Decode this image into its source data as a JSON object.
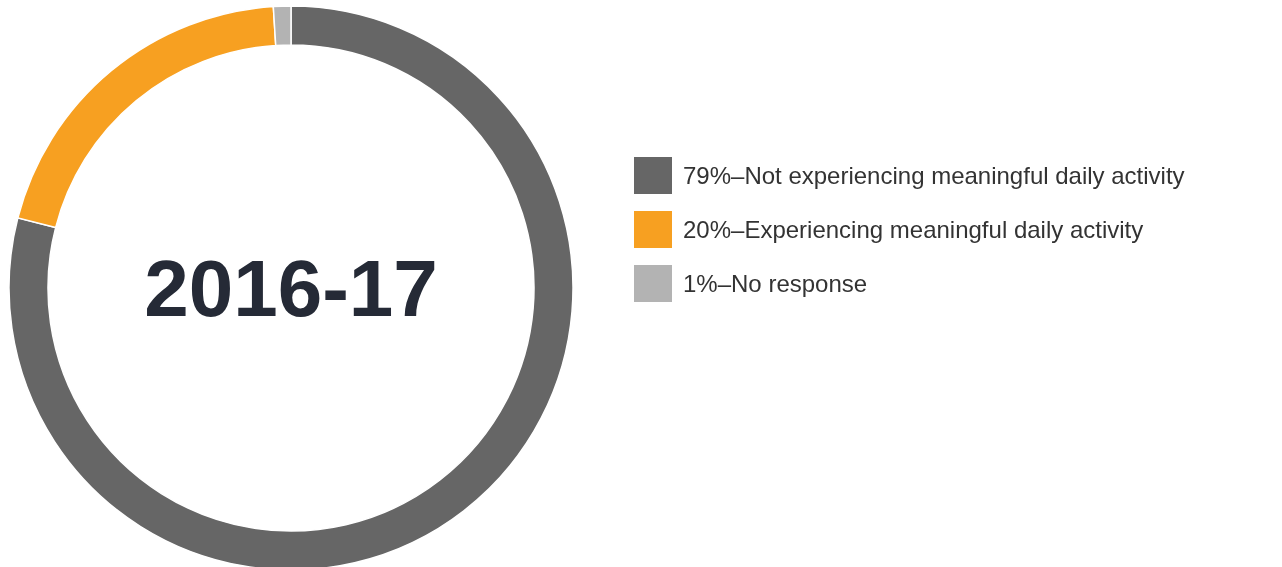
{
  "chart_data": {
    "type": "donut",
    "title": "2016-17",
    "categories": [
      "79%–Not experiencing meaningful daily activity",
      "20%–Experiencing meaningful daily activity",
      "1%–No response"
    ],
    "values": [
      79,
      20,
      1
    ],
    "colors": [
      "#666666",
      "#f7a021",
      "#b3b3b3"
    ],
    "legend": "right"
  }
}
